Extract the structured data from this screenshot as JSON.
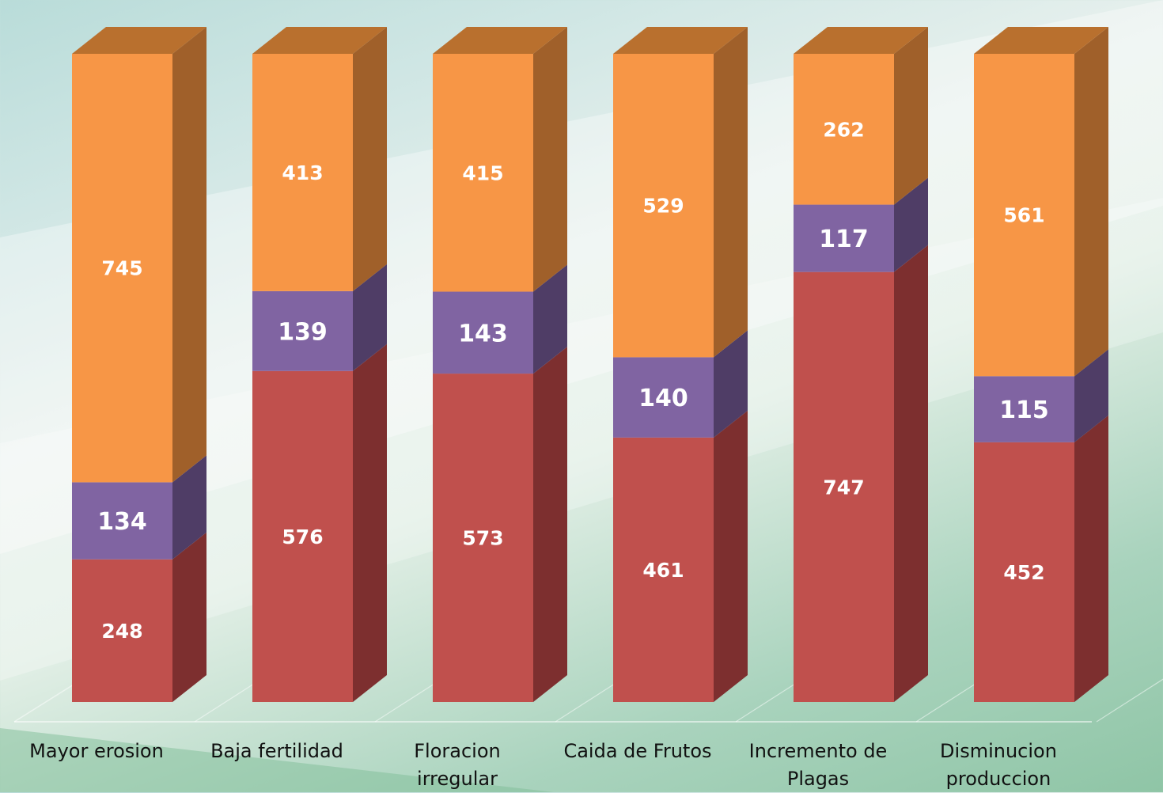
{
  "chart_data": {
    "type": "bar",
    "stacked": true,
    "categories": [
      "Mayor erosion",
      "Baja fertilidad",
      "Floracion irregular",
      "Caida de Frutos",
      "Incremento de Plagas",
      "Disminucion produccion"
    ],
    "category_labels": [
      "Mayor erosion",
      "Baja fertilidad",
      "Floracion\nirregular",
      "Caida de Frutos",
      "Incremento de\nPlagas",
      "Disminucion\nproduccion"
    ],
    "series": [
      {
        "values": [
          248,
          576,
          573,
          461,
          747,
          452
        ],
        "color": "#c0504d",
        "side_color": "#7d2f2f"
      },
      {
        "values": [
          134,
          139,
          143,
          140,
          117,
          115
        ],
        "color": "#8064a2",
        "side_color": "#4f3d66"
      },
      {
        "values": [
          745,
          413,
          415,
          529,
          262,
          561
        ],
        "color": "#f79646",
        "side_color": "#a0602a",
        "top_color": "#b9702e"
      }
    ],
    "percent_stacked": true,
    "grid": false,
    "legend": "none",
    "three_d": true
  }
}
